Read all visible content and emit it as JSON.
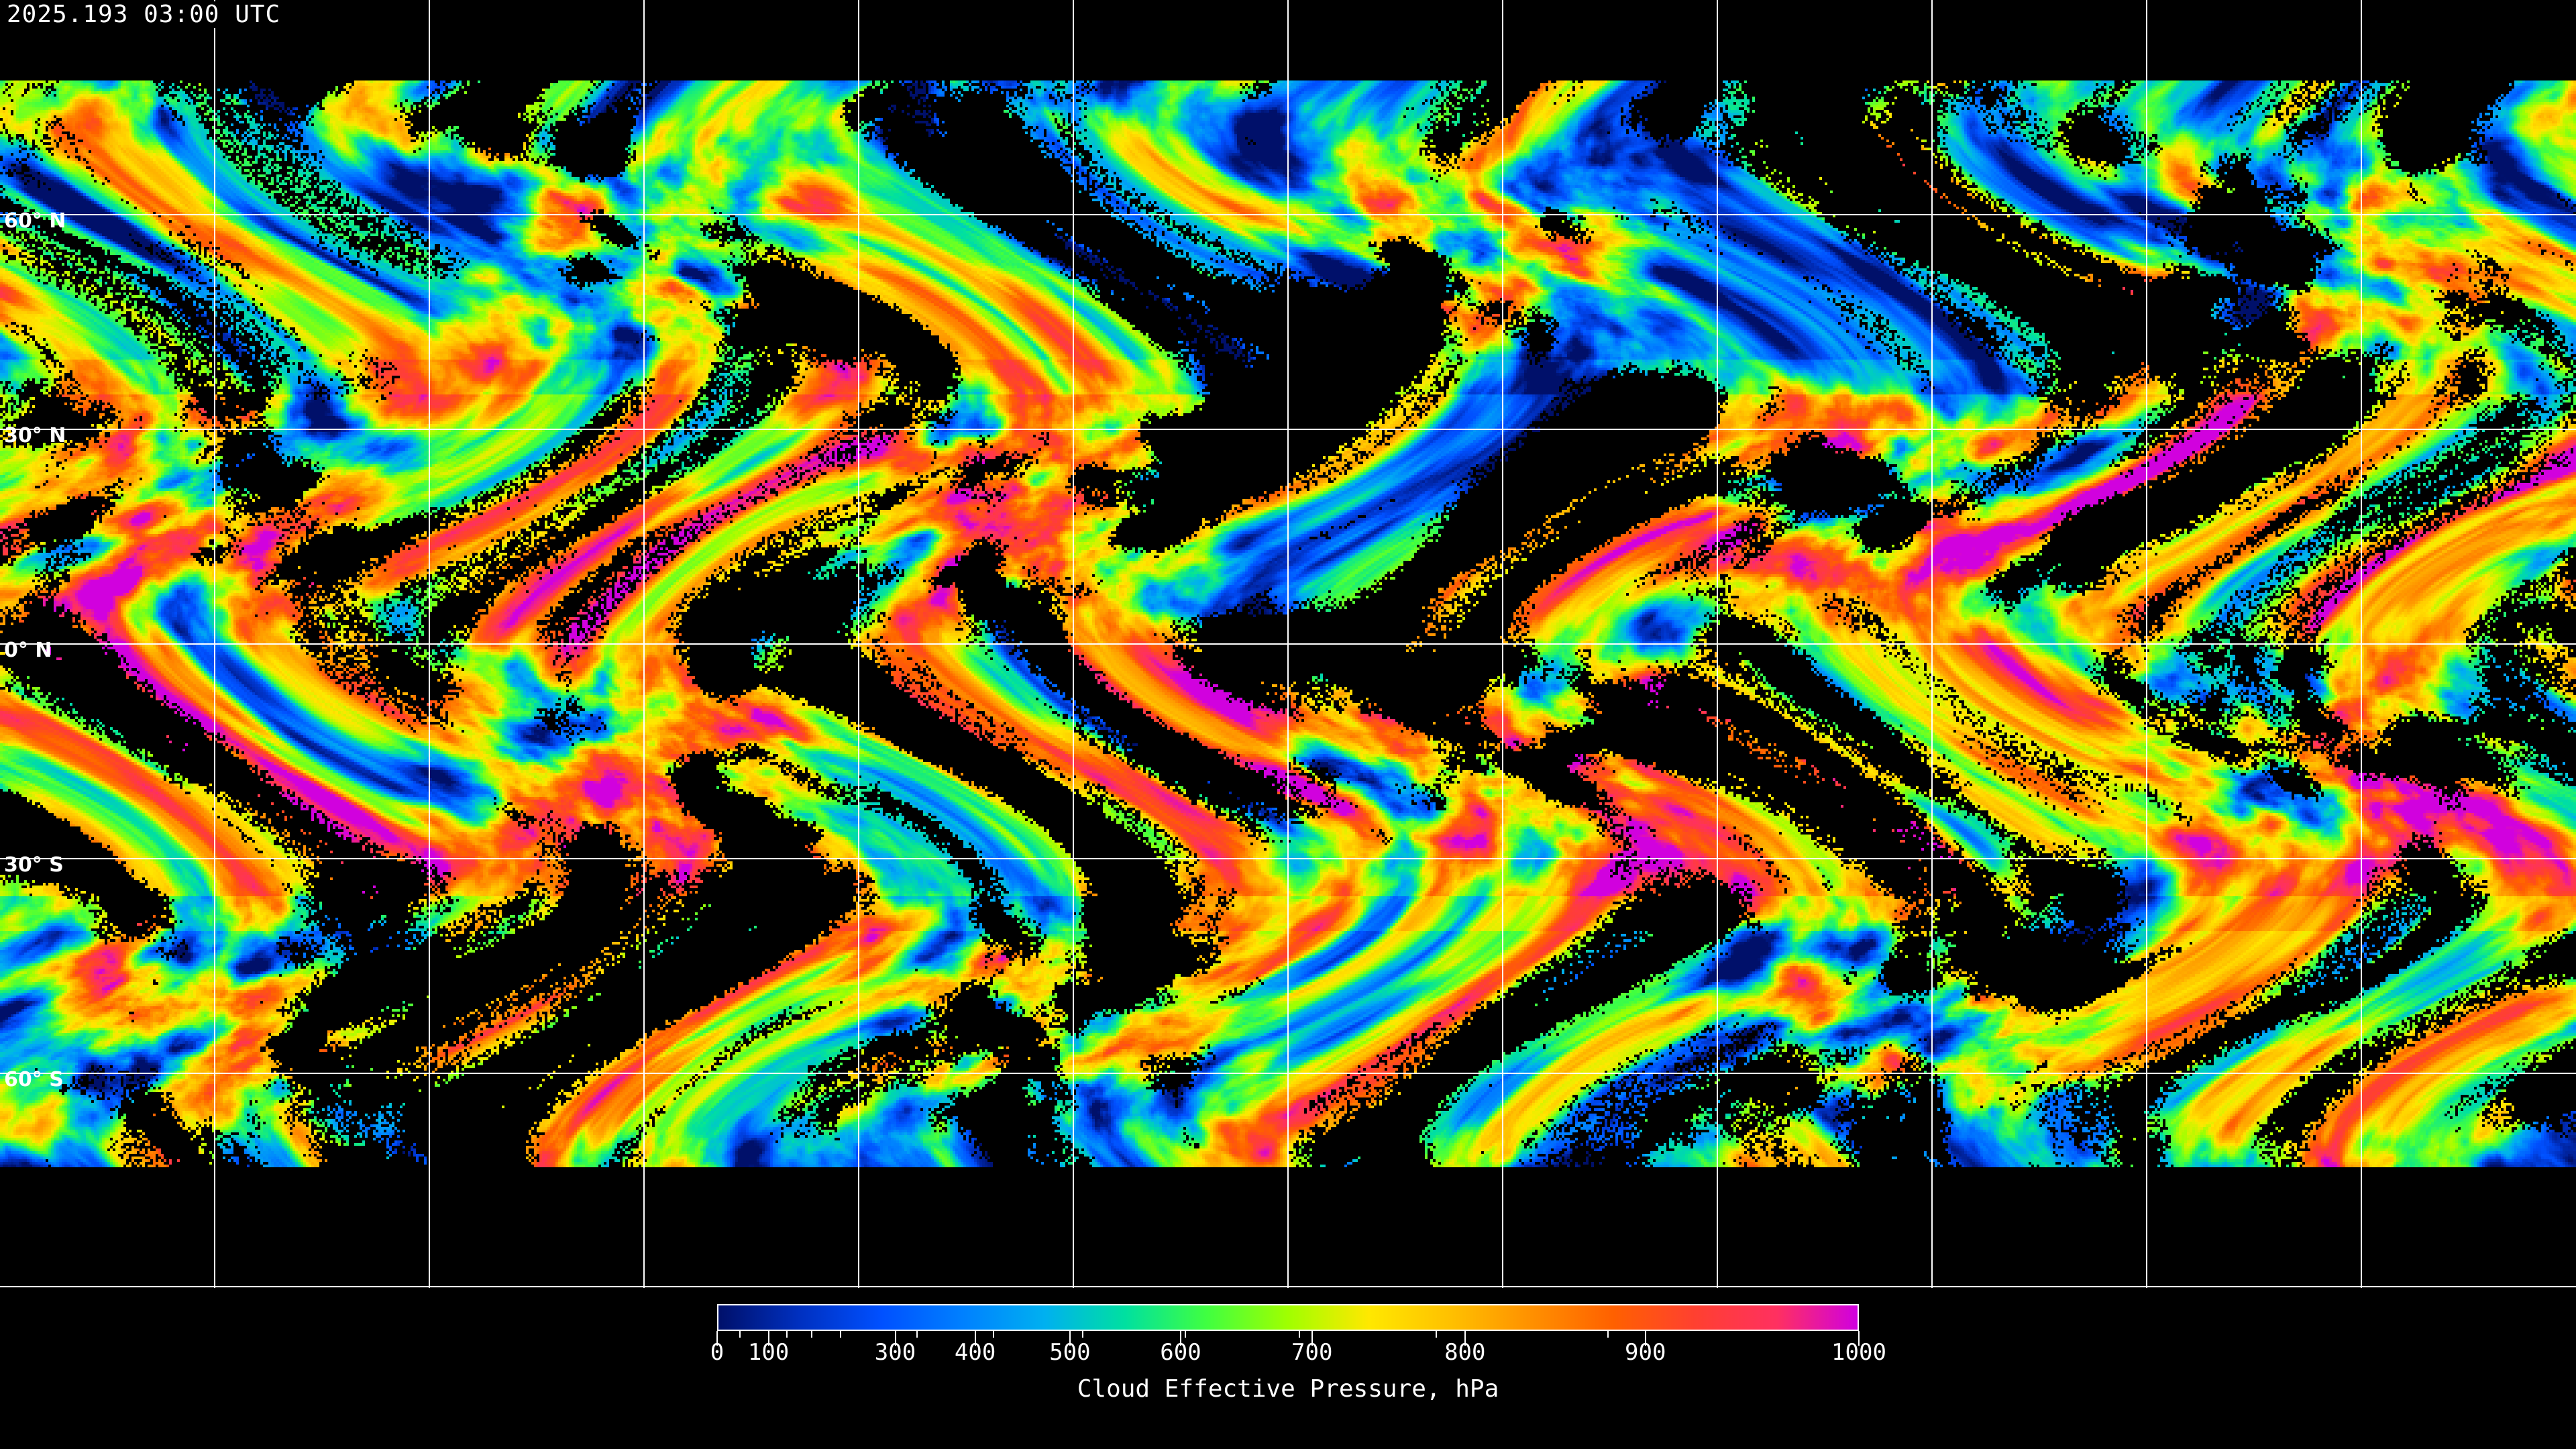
{
  "header": {
    "timestamp": "2025.193 03:00 UTC"
  },
  "map": {
    "projection": "equirectangular",
    "gridlines": true,
    "grid_color": "#ffffff",
    "coastline_color": "#ffffff",
    "no_data_color": "#000000",
    "lat_labels": [
      "60° N",
      "30° N",
      "0° N",
      "30° S",
      "60° S"
    ]
  },
  "colorbar": {
    "title": "Cloud Effective Pressure, hPa",
    "tick_labels": [
      "0",
      "100",
      "300",
      "400",
      "500",
      "600",
      "700",
      "800",
      "900",
      "1000"
    ],
    "range": [
      0,
      1000
    ],
    "colormap": [
      "#00106a",
      "#0030c0",
      "#0050ff",
      "#0080ff",
      "#00b0f0",
      "#00e0a0",
      "#40ff40",
      "#a0ff00",
      "#ffe800",
      "#ffc000",
      "#ff9000",
      "#ff6000",
      "#ff4030",
      "#ff3060",
      "#d000e0"
    ]
  }
}
